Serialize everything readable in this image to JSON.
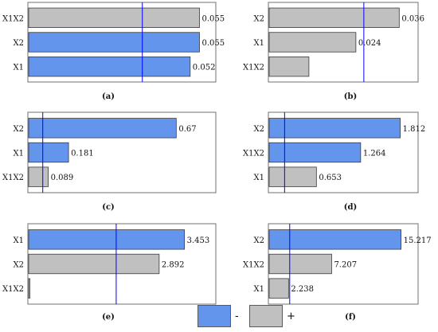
{
  "colors": {
    "negative": "#6495ed",
    "positive": "#c0c0c0",
    "bar_stroke": "#3a3a3a",
    "reference_line": "#0000ff",
    "frame": "#707070"
  },
  "legend": {
    "items": [
      {
        "label": "-",
        "color": "#6495ed"
      },
      {
        "label": "+",
        "color": "#c0c0c0"
      }
    ]
  },
  "chart_data": [
    {
      "type": "bar",
      "orientation": "horizontal",
      "caption": "(a)",
      "categories": [
        "X1X2",
        "X2",
        "X1"
      ],
      "values": [
        0.055,
        0.055,
        0.052
      ],
      "value_labels": [
        "0.055",
        "0.055",
        "0.052"
      ],
      "signs": [
        "+",
        "-",
        "-"
      ],
      "xlim": [
        0,
        0.06
      ],
      "reference_line": 0.0366,
      "grid": false
    },
    {
      "type": "bar",
      "orientation": "horizontal",
      "caption": "(b)",
      "categories": [
        "X2",
        "X1",
        "X1X2"
      ],
      "values": [
        0.036,
        0.024,
        0.011
      ],
      "value_labels": [
        "0.036",
        "0.024",
        ""
      ],
      "signs": [
        "+",
        "+",
        "+"
      ],
      "xlim": [
        0,
        0.041
      ],
      "reference_line": 0.0262,
      "grid": false
    },
    {
      "type": "bar",
      "orientation": "horizontal",
      "caption": "(c)",
      "categories": [
        "X2",
        "X1",
        "X1X2"
      ],
      "values": [
        0.67,
        0.181,
        0.089
      ],
      "value_labels": [
        "0.67",
        "0.181",
        "0.089"
      ],
      "signs": [
        "-",
        "-",
        "+"
      ],
      "xlim": [
        0,
        0.846
      ],
      "reference_line": 0.064,
      "grid": false
    },
    {
      "type": "bar",
      "orientation": "horizontal",
      "caption": "(d)",
      "categories": [
        "X2",
        "X1X2",
        "X1"
      ],
      "values": [
        1.812,
        1.264,
        0.653
      ],
      "value_labels": [
        "1.812",
        "1.264",
        "0.653"
      ],
      "signs": [
        "-",
        "-",
        "+"
      ],
      "xlim": [
        0,
        2.047
      ],
      "reference_line": 0.213,
      "grid": false
    },
    {
      "type": "bar",
      "orientation": "horizontal",
      "caption": "(e)",
      "categories": [
        "X1",
        "X2",
        "X1X2"
      ],
      "values": [
        3.453,
        2.892,
        0.027
      ],
      "value_labels": [
        "3.453",
        "2.892",
        ""
      ],
      "signs": [
        "-",
        "+",
        "+"
      ],
      "xlim": [
        0,
        4.13
      ],
      "reference_line": 1.94,
      "grid": false
    },
    {
      "type": "bar",
      "orientation": "horizontal",
      "caption": "(f)",
      "categories": [
        "X2",
        "X1X2",
        "X1"
      ],
      "values": [
        15.217,
        7.207,
        2.238
      ],
      "value_labels": [
        "15.217",
        "7.207",
        "2.238"
      ],
      "signs": [
        "-",
        "+",
        "+"
      ],
      "xlim": [
        0,
        17.09
      ],
      "reference_line": 2.37,
      "grid": false
    }
  ]
}
